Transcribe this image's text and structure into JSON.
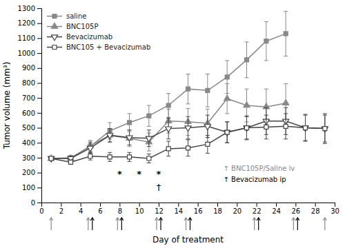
{
  "chart_data": {
    "type": "line",
    "xlabel": "Day of treatment",
    "ylabel": "Tumor volume (mm³)",
    "xlim": [
      0,
      30
    ],
    "ylim": [
      0,
      1300
    ],
    "xticks": [
      0,
      2,
      4,
      6,
      8,
      10,
      12,
      14,
      16,
      18,
      20,
      22,
      24,
      26,
      28,
      30
    ],
    "yticks": [
      0,
      100,
      200,
      300,
      400,
      500,
      600,
      700,
      800,
      900,
      1000,
      1100,
      1200,
      1300
    ],
    "grid": false,
    "legend": "upper left",
    "series": [
      {
        "name": "saline",
        "color": "#888888",
        "marker": "square",
        "line_style": "solid",
        "x": [
          1,
          3,
          5,
          7,
          9,
          11,
          13,
          15,
          17,
          19,
          21,
          23,
          25
        ],
        "values": [
          295,
          300,
          375,
          480,
          535,
          580,
          650,
          760,
          750,
          840,
          955,
          1080,
          1130
        ],
        "errors": [
          10,
          15,
          35,
          55,
          60,
          70,
          80,
          100,
          110,
          110,
          120,
          130,
          150
        ]
      },
      {
        "name": "BNC105P",
        "color": "#888888",
        "marker": "triangle-up",
        "line_style": "solid",
        "x": [
          1,
          3,
          5,
          7,
          9,
          11,
          13,
          15,
          17,
          19,
          21,
          23,
          25
        ],
        "values": [
          295,
          295,
          380,
          450,
          430,
          405,
          545,
          540,
          530,
          695,
          650,
          640,
          665
        ],
        "errors": [
          10,
          15,
          35,
          45,
          55,
          60,
          80,
          90,
          95,
          100,
          110,
          120,
          130
        ]
      },
      {
        "name": "Bevacizumab",
        "color": "#444444",
        "marker": "triangle-down-open",
        "line_style": "solid",
        "x": [
          1,
          3,
          5,
          7,
          9,
          11,
          13,
          15,
          17,
          19,
          21,
          23,
          25,
          27,
          29
        ],
        "values": [
          295,
          295,
          365,
          450,
          435,
          430,
          495,
          500,
          510,
          470,
          500,
          545,
          545,
          500,
          495
        ],
        "errors": [
          10,
          15,
          35,
          45,
          50,
          55,
          70,
          75,
          75,
          70,
          80,
          90,
          90,
          90,
          100
        ]
      },
      {
        "name": "BNC105 + Bevacizumab",
        "color": "#444444",
        "marker": "square-open",
        "line_style": "solid",
        "x": [
          1,
          3,
          5,
          7,
          9,
          11,
          13,
          15,
          17,
          19,
          21,
          23,
          25,
          27,
          29
        ],
        "values": [
          295,
          270,
          310,
          305,
          305,
          295,
          360,
          365,
          390,
          470,
          500,
          505,
          510,
          500,
          495
        ],
        "errors": [
          10,
          15,
          25,
          30,
          30,
          30,
          50,
          55,
          60,
          70,
          75,
          80,
          85,
          85,
          90
        ]
      }
    ],
    "annotations": [
      {
        "text": "*",
        "x": 8,
        "y": 185
      },
      {
        "text": "*",
        "x": 10,
        "y": 185
      },
      {
        "text": "*",
        "x": 12,
        "y": 185
      },
      {
        "text": "†",
        "x": 12,
        "y": 100
      }
    ],
    "dosing": [
      {
        "label": "↑ BNC105P/Saline iv",
        "color": "#888888",
        "days": [
          1,
          5,
          8,
          12,
          15,
          22,
          26,
          29
        ]
      },
      {
        "label": "↑ Bevacizumab ip",
        "color": "#000000",
        "days": [
          5,
          8,
          12,
          15,
          22,
          26
        ]
      }
    ]
  }
}
